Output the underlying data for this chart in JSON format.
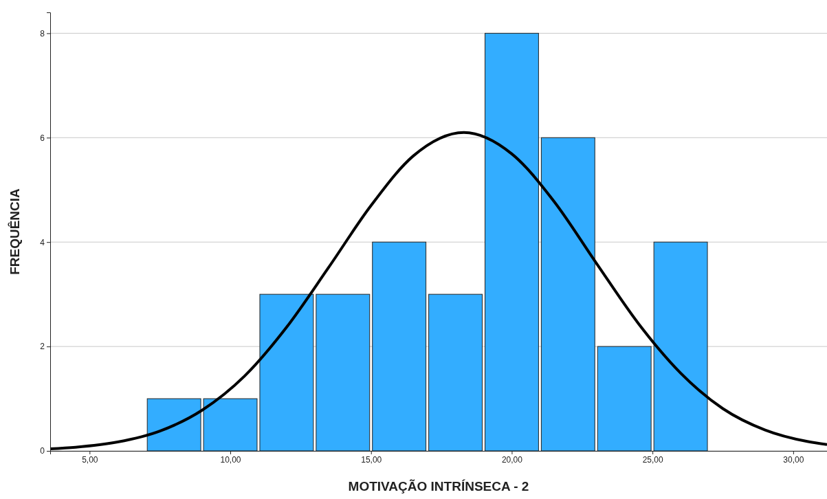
{
  "chart_data": {
    "type": "histogram",
    "xlabel": "MOTIVAÇÃO INTRÍNSECA - 2",
    "ylabel": "FREQUÊNCIA",
    "bins": [
      7,
      9,
      11,
      13,
      15,
      17,
      19,
      21,
      23,
      25,
      27
    ],
    "values": [
      1,
      1,
      3,
      3,
      4,
      3,
      8,
      6,
      2,
      4
    ],
    "color": "#33adff",
    "series": [
      {
        "type": "line",
        "color": "#000000",
        "x": [
          3.6,
          4.5,
          6,
          7.5,
          9,
          10.5,
          12,
          13.5,
          15,
          16.5,
          18.3,
          20,
          21.5,
          23,
          24.5,
          26,
          27.5,
          29,
          30.5,
          31.2
        ],
        "values": [
          0.04,
          0.07,
          0.17,
          0.38,
          0.78,
          1.43,
          2.37,
          3.52,
          4.7,
          5.65,
          6.1,
          5.69,
          4.78,
          3.6,
          2.44,
          1.49,
          0.81,
          0.4,
          0.18,
          0.12
        ]
      }
    ],
    "xlim": [
      3.6,
      31.2
    ],
    "ylim": [
      0,
      8.4
    ],
    "xticks": [
      {
        "value": 5,
        "label": "5,00"
      },
      {
        "value": 10,
        "label": "10,00"
      },
      {
        "value": 15,
        "label": "15,00"
      },
      {
        "value": 20,
        "label": "20,00"
      },
      {
        "value": 25,
        "label": "25,00"
      },
      {
        "value": 30,
        "label": "30,00"
      }
    ],
    "yticks": [
      0,
      2,
      4,
      6,
      8
    ],
    "grid": "y",
    "marker": "none",
    "line_style": "solid"
  }
}
